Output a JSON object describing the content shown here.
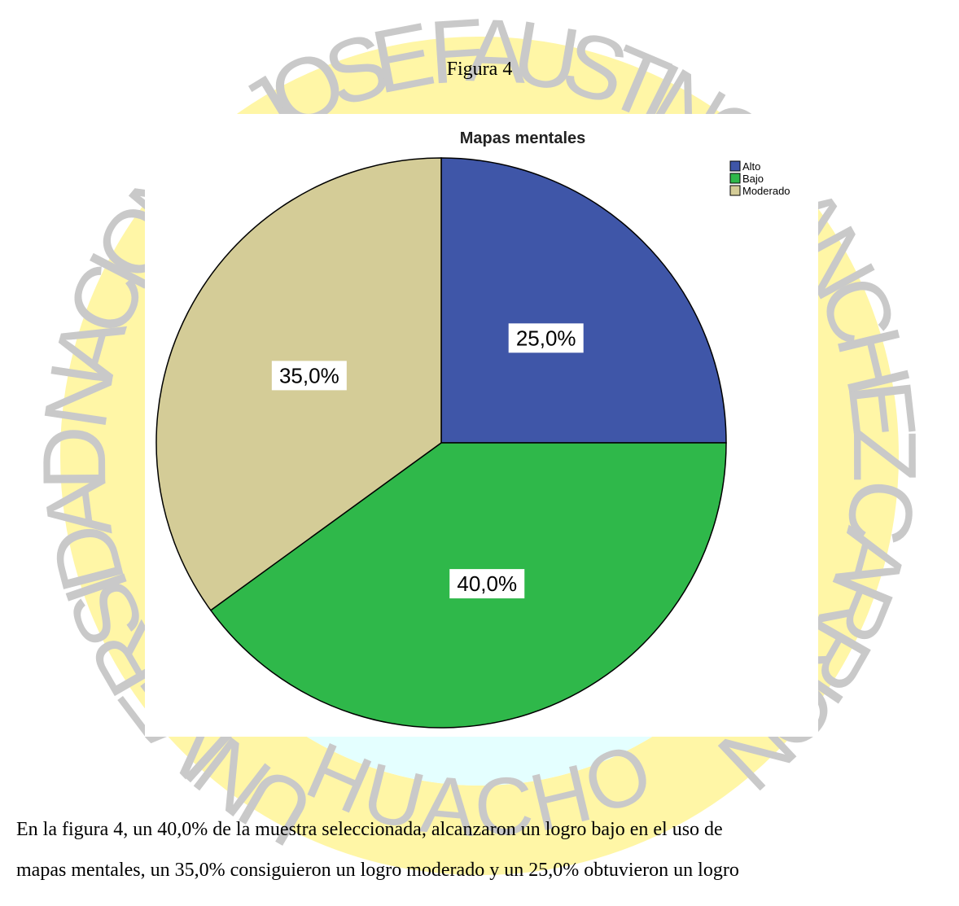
{
  "figure_caption": "Figura 4",
  "watermark": {
    "top": "UNIVERSIDAD NACIONAL JOSE FAUSTINO SANCHEZ CARRION",
    "bottom": "HUACHO"
  },
  "chart_data": {
    "type": "pie",
    "title": "Mapas mentales",
    "categories": [
      "Alto",
      "Bajo",
      "Moderado"
    ],
    "values": [
      25,
      40,
      35
    ],
    "value_labels": [
      "25,0%",
      "40,0%",
      "35,0%"
    ],
    "colors": [
      "#3f56a8",
      "#2fb84a",
      "#d4cc97"
    ],
    "legend": "top-right"
  },
  "paragraph": {
    "lines": [
      "En la figura 4, un 40,0% de la muestra seleccionada, alcanzaron un logro bajo en el uso de",
      "mapas mentales, un 35,0% consiguieron un logro moderado y un 25,0% obtuvieron un logro"
    ]
  }
}
